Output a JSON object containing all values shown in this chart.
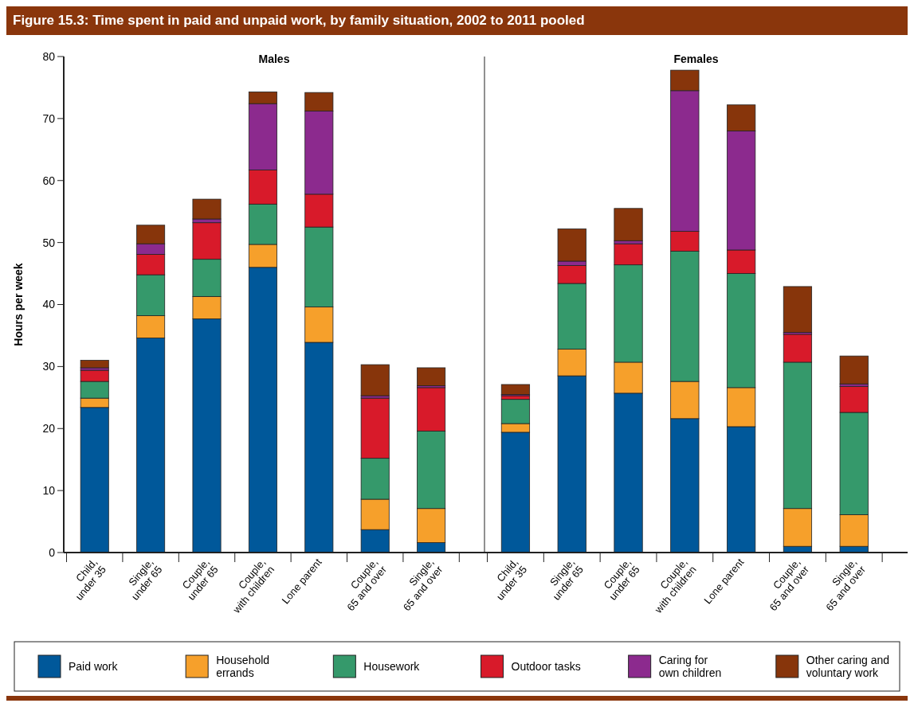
{
  "chart_data": [
    {
      "type": "bar",
      "stacked": true,
      "title": "Figure 15.3: Time spent in paid and unpaid work, by family situation, 2002 to 2011 pooled",
      "subtitle": "Males",
      "ylabel": "Hours per week",
      "categories": [
        "Child, under 35",
        "Single, under 65",
        "Couple, under 65",
        "Couple, with children",
        "Lone parent",
        "Couple, 65 and over",
        "Single, 65 and over"
      ],
      "ylim": [
        0,
        80
      ],
      "yticks": [
        0,
        10,
        20,
        30,
        40,
        50,
        60,
        70,
        80
      ],
      "legend": "bottom",
      "series": [
        {
          "name": "Paid work",
          "color": "#00589a",
          "values": [
            23.4,
            34.6,
            37.7,
            46.0,
            33.9,
            3.7,
            1.6
          ]
        },
        {
          "name": "Household errands",
          "color": "#f6a02b",
          "values": [
            1.5,
            3.6,
            3.6,
            3.7,
            5.7,
            4.9,
            5.5
          ]
        },
        {
          "name": "Housework",
          "color": "#35996b",
          "values": [
            2.7,
            6.6,
            6.0,
            6.5,
            12.9,
            6.6,
            12.5
          ]
        },
        {
          "name": "Outdoor tasks",
          "color": "#d81a2a",
          "values": [
            1.8,
            3.3,
            5.9,
            5.5,
            5.3,
            9.7,
            7.0
          ]
        },
        {
          "name": "Caring for own children",
          "color": "#8c2a8e",
          "values": [
            0.4,
            1.7,
            0.6,
            10.7,
            13.4,
            0.4,
            0.3
          ]
        },
        {
          "name": "Other caring and voluntary work",
          "color": "#87350b",
          "values": [
            1.2,
            3.0,
            3.2,
            1.9,
            3.0,
            5.0,
            2.9
          ]
        }
      ]
    },
    {
      "type": "bar",
      "stacked": true,
      "subtitle": "Females",
      "categories": [
        "Child, under 35",
        "Single, under 65",
        "Couple, under 65",
        "Couple, with children",
        "Lone parent",
        "Couple, 65 and over",
        "Single, 65 and over"
      ],
      "ylim": [
        0,
        80
      ],
      "tick_labels": "x",
      "series": [
        {
          "color": "#00589a",
          "values": [
            19.4,
            28.5,
            25.7,
            21.6,
            20.3,
            1.0,
            1.0
          ]
        },
        {
          "color": "#f6a02b",
          "values": [
            1.4,
            4.3,
            5.0,
            6.0,
            6.3,
            6.1,
            5.1
          ]
        },
        {
          "color": "#35996b",
          "values": [
            3.9,
            10.6,
            15.7,
            21.0,
            18.4,
            23.6,
            16.5
          ]
        },
        {
          "color": "#d81a2a",
          "values": [
            0.6,
            2.9,
            3.4,
            3.2,
            3.8,
            4.5,
            4.2
          ]
        },
        {
          "color": "#8c2a8e",
          "values": [
            0.2,
            0.7,
            0.5,
            22.7,
            19.2,
            0.3,
            0.4
          ]
        },
        {
          "color": "#87350b",
          "values": [
            1.6,
            5.2,
            5.2,
            3.3,
            4.2,
            7.4,
            4.5
          ]
        }
      ]
    }
  ]
}
